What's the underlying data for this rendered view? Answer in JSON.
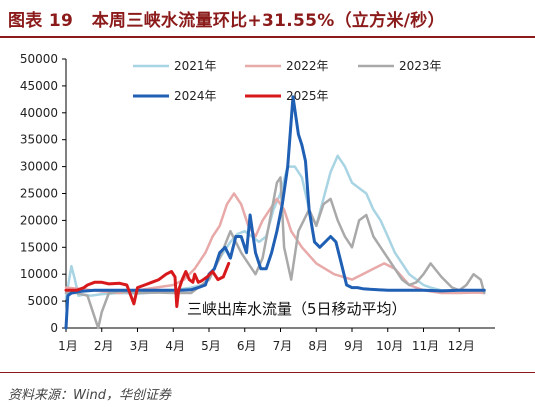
{
  "header": {
    "figure_label": "图表 19",
    "title": "本周三峡水流量环比+31.55%（立方米/秒）"
  },
  "footer": {
    "source": "资料来源：Wind，华创证券"
  },
  "chart_data": {
    "type": "line",
    "title": "本周三峡水流量环比+31.55%（立方米/秒）",
    "annotation": "三峡出库水流量（5日移动平均）",
    "xlabel": "",
    "ylabel": "",
    "ylim": [
      0,
      50000
    ],
    "yticks": [
      0,
      5000,
      10000,
      15000,
      20000,
      25000,
      30000,
      35000,
      40000,
      45000,
      50000
    ],
    "xlim": [
      0,
      12
    ],
    "xticks": [
      {
        "v": 0,
        "label": "1月"
      },
      {
        "v": 1,
        "label": "2月"
      },
      {
        "v": 2,
        "label": "3月"
      },
      {
        "v": 3,
        "label": "4月"
      },
      {
        "v": 4,
        "label": "5月"
      },
      {
        "v": 5,
        "label": "6月"
      },
      {
        "v": 6,
        "label": "7月"
      },
      {
        "v": 7,
        "label": "8月"
      },
      {
        "v": 8,
        "label": "9月"
      },
      {
        "v": 9,
        "label": "10月"
      },
      {
        "v": 10,
        "label": "11月"
      },
      {
        "v": 11,
        "label": "12月"
      }
    ],
    "grid": false,
    "legend_position": "top",
    "series": [
      {
        "name": "2021年",
        "color": "#a8d4e3",
        "width": 2.5,
        "x": [
          0,
          0.15,
          0.25,
          0.35,
          0.5,
          0.7,
          1.0,
          1.5,
          2.0,
          2.5,
          3.0,
          3.5,
          3.8,
          4.0,
          4.2,
          4.4,
          4.6,
          4.8,
          5.0,
          5.2,
          5.4,
          5.6,
          5.8,
          6.0,
          6.2,
          6.4,
          6.6,
          6.8,
          7.0,
          7.2,
          7.4,
          7.6,
          7.8,
          8.0,
          8.2,
          8.4,
          8.6,
          8.8,
          9.0,
          9.2,
          9.4,
          9.6,
          9.8,
          10.0,
          10.2,
          10.5,
          10.8,
          11.0,
          11.3,
          11.7
        ],
        "y": [
          5500,
          11500,
          9000,
          6000,
          6200,
          6000,
          6300,
          6500,
          6400,
          6600,
          7000,
          7500,
          8000,
          9000,
          12000,
          14000,
          16000,
          17500,
          18000,
          17000,
          16000,
          17000,
          22000,
          25000,
          30000,
          30000,
          28000,
          22000,
          19000,
          24000,
          29000,
          32000,
          30000,
          27000,
          26000,
          25000,
          22000,
          20000,
          17000,
          14000,
          12000,
          10000,
          9000,
          8000,
          7500,
          7000,
          6800,
          6800,
          7000,
          6800
        ]
      },
      {
        "name": "2022年",
        "color": "#e8a9a9",
        "width": 2.5,
        "x": [
          0,
          0.5,
          1.0,
          1.5,
          2.0,
          2.5,
          3.0,
          3.3,
          3.6,
          3.9,
          4.1,
          4.3,
          4.5,
          4.7,
          4.9,
          5.1,
          5.3,
          5.5,
          5.7,
          5.9,
          6.1,
          6.3,
          6.6,
          7.0,
          7.5,
          8.0,
          8.3,
          8.6,
          8.9,
          9.2,
          9.6,
          10.0,
          10.5,
          11.0,
          11.5,
          11.7
        ],
        "y": [
          7500,
          7200,
          6800,
          6500,
          7000,
          7500,
          8000,
          9000,
          11000,
          14000,
          17000,
          19000,
          23000,
          25000,
          23000,
          19000,
          17000,
          20000,
          22000,
          24000,
          22000,
          18000,
          15000,
          12000,
          10000,
          9000,
          10000,
          11000,
          12000,
          11000,
          8000,
          7000,
          6500,
          6500,
          6600,
          6500
        ]
      },
      {
        "name": "2023年",
        "color": "#a9a9a9",
        "width": 2.5,
        "x": [
          0,
          0.3,
          0.6,
          0.8,
          0.9,
          1.0,
          1.2,
          1.5,
          2.0,
          2.5,
          3.0,
          3.5,
          4.0,
          4.3,
          4.6,
          4.9,
          5.1,
          5.3,
          5.5,
          5.7,
          5.9,
          6.0,
          6.1,
          6.3,
          6.5,
          6.8,
          7.0,
          7.2,
          7.4,
          7.6,
          7.8,
          8.0,
          8.2,
          8.4,
          8.6,
          8.8,
          9.0,
          9.2,
          9.4,
          9.6,
          9.8,
          10.0,
          10.2,
          10.5,
          10.8,
          11.0,
          11.2,
          11.4,
          11.6,
          11.7
        ],
        "y": [
          6500,
          6500,
          6000,
          2000,
          0,
          3000,
          6500,
          6800,
          6500,
          6600,
          6500,
          6500,
          9000,
          13000,
          18000,
          14000,
          12000,
          10000,
          13000,
          20000,
          27000,
          28000,
          15000,
          9000,
          18000,
          22000,
          19000,
          23000,
          24000,
          20000,
          17000,
          15000,
          20000,
          21000,
          17000,
          15000,
          13000,
          11000,
          9000,
          8000,
          8500,
          10000,
          12000,
          9500,
          7500,
          7000,
          8000,
          10000,
          9000,
          6500
        ]
      },
      {
        "name": "2024年",
        "color": "#1f5fb4",
        "width": 3,
        "x": [
          0,
          0.05,
          0.15,
          0.4,
          0.8,
          1.2,
          1.6,
          2.0,
          2.4,
          2.8,
          3.2,
          3.5,
          3.7,
          3.9,
          4.0,
          4.15,
          4.3,
          4.45,
          4.6,
          4.75,
          4.9,
          5.05,
          5.15,
          5.3,
          5.45,
          5.6,
          5.75,
          5.9,
          6.05,
          6.2,
          6.35,
          6.5,
          6.6,
          6.7,
          6.8,
          6.95,
          7.1,
          7.25,
          7.4,
          7.55,
          7.7,
          7.85,
          8.0,
          8.15,
          8.3,
          8.5,
          9.0,
          9.5,
          10.0,
          10.5,
          11.0,
          11.5,
          11.7
        ],
        "y": [
          0,
          6000,
          6500,
          6800,
          7000,
          7000,
          7000,
          7000,
          7000,
          7000,
          7000,
          7100,
          7500,
          8000,
          10000,
          11000,
          14000,
          15000,
          13000,
          17000,
          17000,
          14000,
          21000,
          14000,
          11000,
          11000,
          14000,
          18000,
          23000,
          30000,
          43000,
          36000,
          34000,
          31000,
          22000,
          16000,
          15000,
          16000,
          17000,
          16000,
          12000,
          8000,
          7500,
          7500,
          7300,
          7200,
          7000,
          7000,
          7000,
          6900,
          7000,
          7000,
          7000
        ]
      },
      {
        "name": "2025年",
        "color": "#d7191c",
        "width": 3,
        "x": [
          0,
          0.3,
          0.5,
          0.6,
          0.8,
          1.0,
          1.2,
          1.5,
          1.7,
          1.9,
          2.0,
          2.2,
          2.4,
          2.6,
          2.8,
          2.95,
          3.05,
          3.1,
          3.15,
          3.25,
          3.35,
          3.45,
          3.55,
          3.6,
          3.7,
          3.8,
          3.95,
          4.1,
          4.25,
          4.4,
          4.55
        ],
        "y": [
          7000,
          7000,
          7500,
          8000,
          8500,
          8500,
          8200,
          8300,
          8000,
          4500,
          7500,
          8000,
          8500,
          9000,
          10000,
          10500,
          9500,
          4000,
          7000,
          9000,
          10500,
          9000,
          8500,
          10000,
          8500,
          8800,
          9500,
          10500,
          9000,
          9500,
          12000
        ]
      }
    ]
  }
}
